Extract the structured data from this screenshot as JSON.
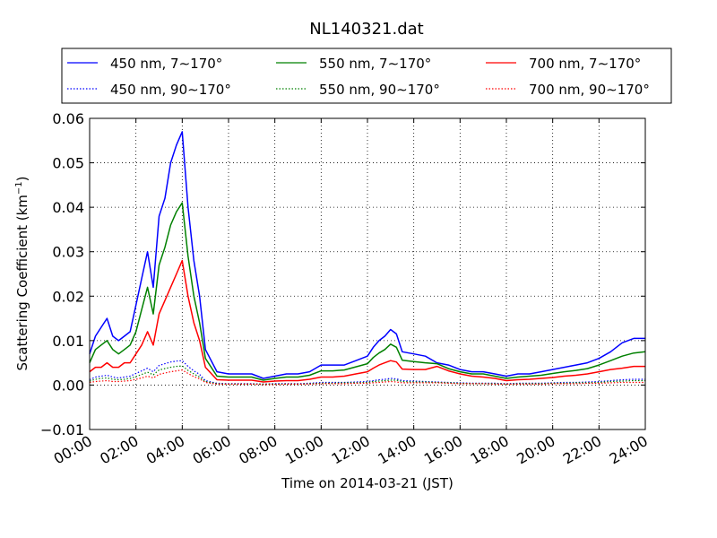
{
  "chart_data": {
    "type": "line",
    "title": "NL140321.dat",
    "xlabel": "Time on 2014-03-21 (JST)",
    "ylabel": "Scattering Coefficient (km",
    "ylabel_sup": "−1",
    "ylabel_end": ")",
    "xlim": [
      "2014-03-21 00:00",
      "2014-03-22 00:00"
    ],
    "ylim": [
      -0.01,
      0.06
    ],
    "x_ticks": [
      "00:00",
      "02:00",
      "04:00",
      "06:00",
      "08:00",
      "10:00",
      "12:00",
      "14:00",
      "16:00",
      "18:00",
      "20:00",
      "22:00",
      "24:00"
    ],
    "y_ticks": [
      "−0.01",
      "0.00",
      "0.01",
      "0.02",
      "0.03",
      "0.04",
      "0.05",
      "0.06"
    ],
    "grid": true,
    "legend_position": "top",
    "x_unit": "hours (JST)",
    "x": [
      0,
      0.25,
      0.5,
      0.75,
      1,
      1.25,
      1.5,
      1.75,
      2,
      2.25,
      2.5,
      2.75,
      3,
      3.25,
      3.5,
      3.75,
      4,
      4.25,
      4.5,
      4.75,
      5,
      5.5,
      6,
      6.5,
      7,
      7.5,
      8,
      8.5,
      9,
      9.5,
      10,
      10.5,
      11,
      11.5,
      12,
      12.25,
      12.5,
      12.75,
      13,
      13.25,
      13.5,
      14,
      14.5,
      15,
      15.5,
      16,
      16.5,
      17,
      17.5,
      18,
      18.5,
      19,
      19.5,
      20,
      20.5,
      21,
      21.5,
      22,
      22.5,
      23,
      23.5,
      24
    ],
    "series": [
      {
        "name": "450 nm, 7∼170°",
        "color": "#0000ff",
        "style": "solid",
        "values": [
          0.007,
          0.011,
          0.013,
          0.015,
          0.011,
          0.01,
          0.011,
          0.012,
          0.018,
          0.024,
          0.03,
          0.022,
          0.038,
          0.042,
          0.05,
          0.054,
          0.057,
          0.04,
          0.028,
          0.02,
          0.008,
          0.003,
          0.0025,
          0.0025,
          0.0025,
          0.0015,
          0.002,
          0.0025,
          0.0025,
          0.003,
          0.0045,
          0.0045,
          0.0045,
          0.0055,
          0.0065,
          0.0085,
          0.01,
          0.011,
          0.0125,
          0.0115,
          0.0075,
          0.007,
          0.0065,
          0.005,
          0.0045,
          0.0035,
          0.003,
          0.003,
          0.0025,
          0.002,
          0.0025,
          0.0025,
          0.003,
          0.0035,
          0.004,
          0.0045,
          0.005,
          0.006,
          0.0075,
          0.0095,
          0.0105,
          0.0105
        ]
      },
      {
        "name": "550 nm, 7∼170°",
        "color": "#008000",
        "style": "solid",
        "values": [
          0.005,
          0.008,
          0.009,
          0.01,
          0.008,
          0.007,
          0.008,
          0.009,
          0.012,
          0.017,
          0.022,
          0.016,
          0.027,
          0.031,
          0.036,
          0.039,
          0.041,
          0.029,
          0.02,
          0.014,
          0.006,
          0.002,
          0.0018,
          0.0018,
          0.0018,
          0.0011,
          0.0015,
          0.0018,
          0.0018,
          0.0022,
          0.0032,
          0.0032,
          0.0034,
          0.0041,
          0.0048,
          0.0062,
          0.0072,
          0.008,
          0.0092,
          0.0085,
          0.0056,
          0.0053,
          0.005,
          0.0048,
          0.0037,
          0.003,
          0.0025,
          0.0025,
          0.002,
          0.0015,
          0.0018,
          0.002,
          0.0022,
          0.0026,
          0.003,
          0.0033,
          0.0037,
          0.0045,
          0.0055,
          0.0065,
          0.0072,
          0.0075
        ]
      },
      {
        "name": "700 nm, 7∼170°",
        "color": "#ff0000",
        "style": "solid",
        "values": [
          0.003,
          0.004,
          0.004,
          0.005,
          0.004,
          0.004,
          0.005,
          0.005,
          0.007,
          0.009,
          0.012,
          0.009,
          0.016,
          0.019,
          0.022,
          0.025,
          0.028,
          0.02,
          0.014,
          0.01,
          0.004,
          0.0012,
          0.0011,
          0.0011,
          0.0011,
          0.0007,
          0.0009,
          0.001,
          0.001,
          0.0013,
          0.0018,
          0.0018,
          0.002,
          0.0025,
          0.003,
          0.0038,
          0.0045,
          0.005,
          0.0055,
          0.0052,
          0.0036,
          0.0035,
          0.0035,
          0.0042,
          0.0032,
          0.0025,
          0.002,
          0.0018,
          0.0015,
          0.001,
          0.0012,
          0.0013,
          0.0015,
          0.0017,
          0.002,
          0.0022,
          0.0025,
          0.003,
          0.0035,
          0.0038,
          0.0042,
          0.0042
        ]
      },
      {
        "name": "450 nm, 90∼170°",
        "color": "#0000ff",
        "style": "dotted",
        "values": [
          0.0012,
          0.0018,
          0.002,
          0.0022,
          0.0018,
          0.0016,
          0.0018,
          0.002,
          0.0026,
          0.0032,
          0.0038,
          0.003,
          0.0044,
          0.0048,
          0.0052,
          0.0054,
          0.0055,
          0.0042,
          0.0032,
          0.0024,
          0.001,
          0.0004,
          0.0003,
          0.0003,
          0.0003,
          0.0002,
          0.0003,
          0.0003,
          0.0003,
          0.0004,
          0.0006,
          0.0006,
          0.0006,
          0.0007,
          0.0008,
          0.001,
          0.0012,
          0.0013,
          0.0015,
          0.0014,
          0.001,
          0.0009,
          0.0008,
          0.0007,
          0.0006,
          0.0005,
          0.0004,
          0.0004,
          0.0004,
          0.0003,
          0.0004,
          0.0004,
          0.0004,
          0.0005,
          0.0006,
          0.0006,
          0.0007,
          0.0008,
          0.001,
          0.0012,
          0.0013,
          0.0013
        ]
      },
      {
        "name": "550 nm, 90∼170°",
        "color": "#008000",
        "style": "dotted",
        "values": [
          0.0009,
          0.0013,
          0.0015,
          0.0016,
          0.0013,
          0.0012,
          0.0013,
          0.0015,
          0.0019,
          0.0024,
          0.0029,
          0.0023,
          0.0034,
          0.0037,
          0.004,
          0.0042,
          0.0043,
          0.0033,
          0.0025,
          0.0018,
          0.0008,
          0.0003,
          0.0002,
          0.0002,
          0.0002,
          0.0002,
          0.0002,
          0.0002,
          0.0002,
          0.0003,
          0.0004,
          0.0004,
          0.0005,
          0.0005,
          0.0006,
          0.0008,
          0.0009,
          0.001,
          0.0011,
          0.0011,
          0.0008,
          0.0007,
          0.0007,
          0.0006,
          0.0005,
          0.0004,
          0.0003,
          0.0003,
          0.0003,
          0.0002,
          0.0003,
          0.0003,
          0.0003,
          0.0004,
          0.0004,
          0.0005,
          0.0005,
          0.0006,
          0.0008,
          0.0009,
          0.001,
          0.001
        ]
      },
      {
        "name": "700 nm, 90∼170°",
        "color": "#ff0000",
        "style": "dotted",
        "values": [
          0.0006,
          0.0008,
          0.0009,
          0.001,
          0.0008,
          0.0008,
          0.0009,
          0.001,
          0.0013,
          0.0016,
          0.002,
          0.0016,
          0.0024,
          0.0027,
          0.003,
          0.0032,
          0.0034,
          0.0026,
          0.0019,
          0.0014,
          0.0006,
          0.0002,
          0.0002,
          0.0002,
          0.0002,
          0.0001,
          0.0001,
          0.0002,
          0.0002,
          0.0002,
          0.0003,
          0.0003,
          0.0003,
          0.0004,
          0.0004,
          0.0005,
          0.0006,
          0.0007,
          0.0008,
          0.0007,
          0.0005,
          0.0005,
          0.0005,
          0.0005,
          0.0004,
          0.0003,
          0.0003,
          0.0003,
          0.0002,
          0.0002,
          0.0002,
          0.0002,
          0.0002,
          0.0003,
          0.0003,
          0.0003,
          0.0004,
          0.0004,
          0.0005,
          0.0006,
          0.0006,
          0.0006
        ]
      }
    ]
  }
}
